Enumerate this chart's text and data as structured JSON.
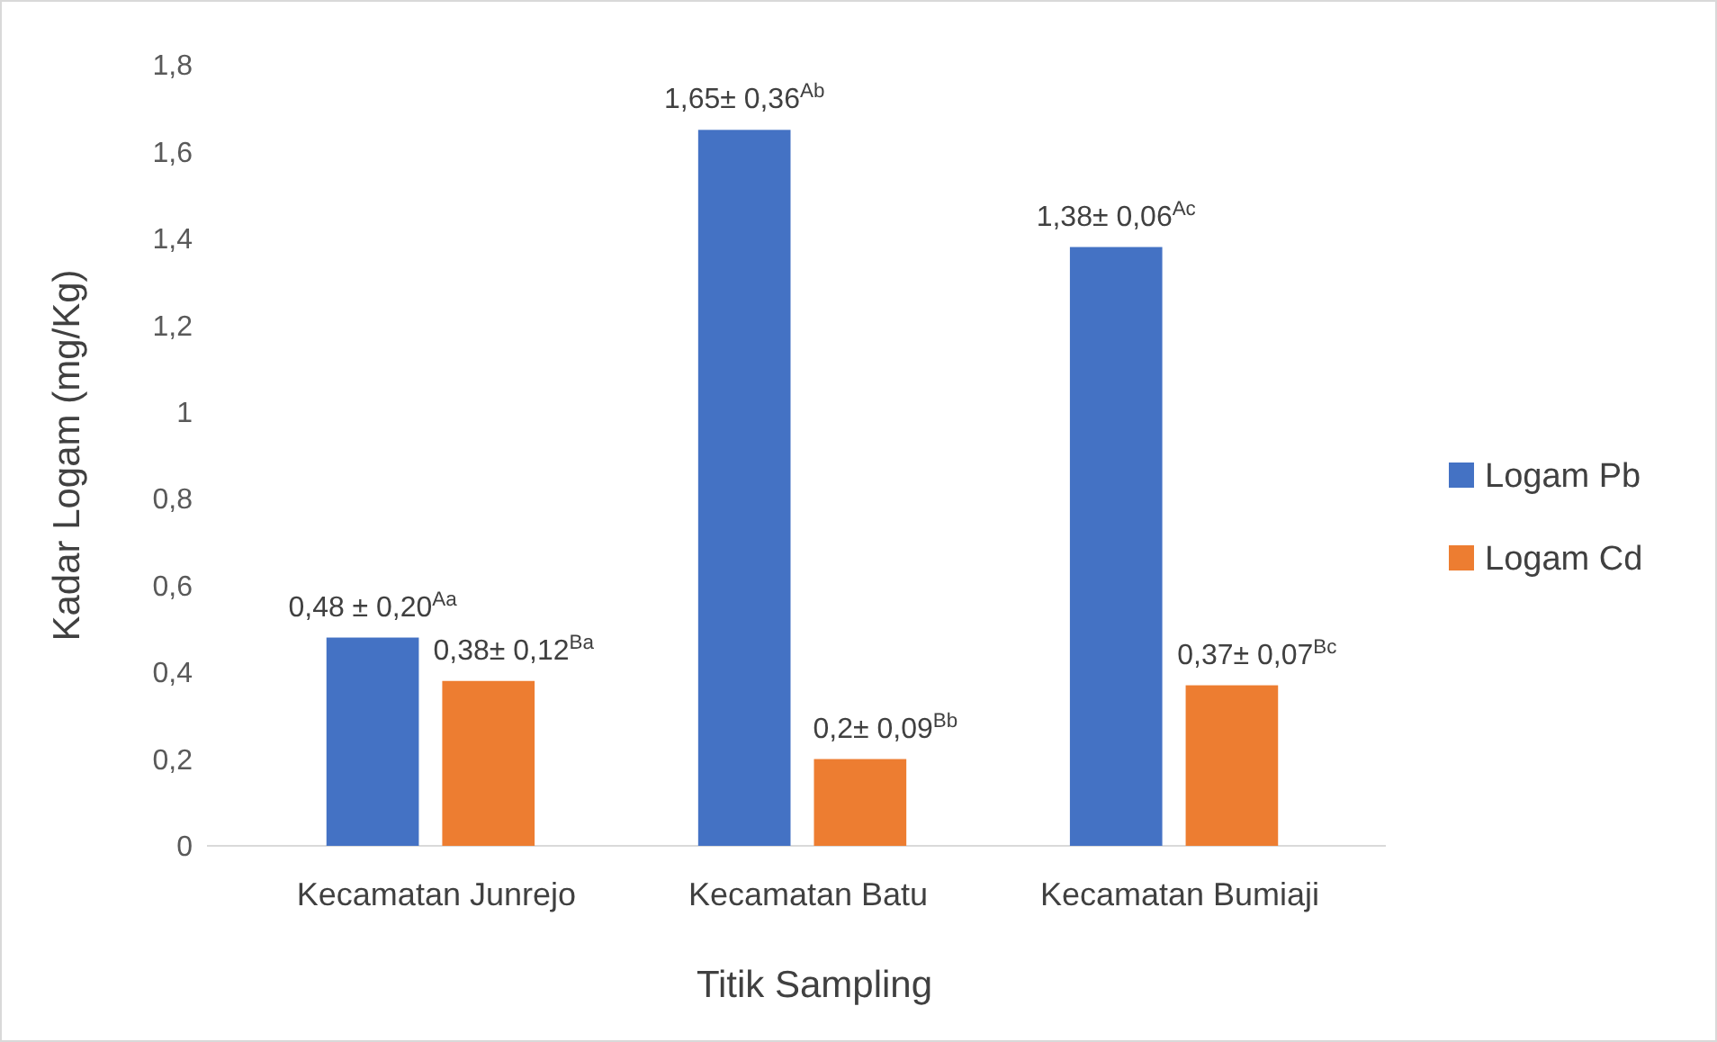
{
  "chart_data": {
    "type": "bar",
    "xlabel": "Titik Sampling",
    "ylabel": "Kadar Logam (mg/Kg)",
    "categories": [
      "Kecamatan Junrejo",
      "Kecamatan Batu",
      "Kecamatan Bumiaji"
    ],
    "series": [
      {
        "name": "Logam Pb",
        "color": "#4472c4",
        "values": [
          0.48,
          1.65,
          1.38
        ],
        "value_labels": [
          "0,48 ± 0,20$^{Aa}$",
          "1,65± 0,36$^{Ab}$",
          "1,38± 0,06$^{Ac}$"
        ]
      },
      {
        "name": "Logam Cd",
        "color": "#ed7d31",
        "values": [
          0.38,
          0.2,
          0.37
        ],
        "value_labels": [
          "0,38± 0,12$^{Ba}$",
          "0,2± 0,09$^{Bb}$",
          "0,37± 0,07$^{Bc}$"
        ]
      }
    ],
    "ylim": [
      0,
      1.8
    ],
    "yticks": [
      0,
      {
        "value": 0.2,
        "label": "0,2"
      },
      {
        "value": 0.4,
        "label": "0,4"
      },
      {
        "value": 0.6,
        "label": "0,6"
      },
      {
        "value": 0.8,
        "label": "0,8"
      },
      1,
      {
        "value": 1.2,
        "label": "1,2"
      },
      {
        "value": 1.4,
        "label": "1,4"
      },
      {
        "value": 1.6,
        "label": "1,6"
      },
      {
        "value": 1.8,
        "label": "1,8"
      }
    ],
    "grid": false,
    "legend": "right"
  }
}
